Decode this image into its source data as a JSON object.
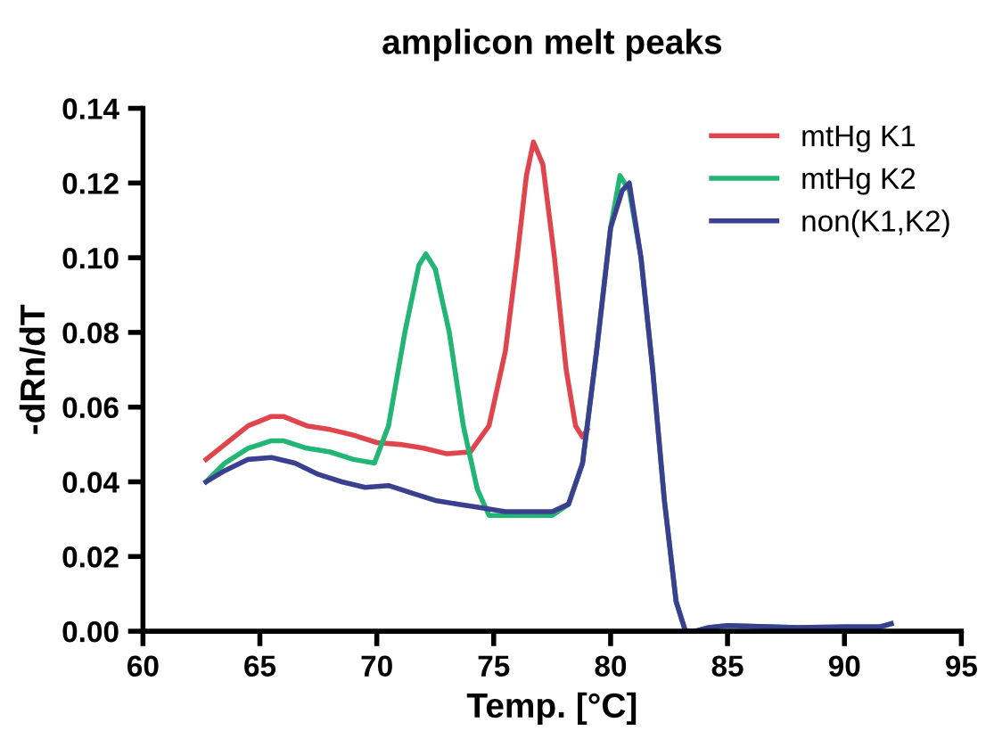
{
  "chart_data": {
    "type": "line",
    "title": "amplicon melt peaks",
    "xlabel": "Temp. [°C]",
    "ylabel": "-dRn/dT",
    "xlim": [
      60,
      95
    ],
    "xticks": [
      60,
      65,
      70,
      75,
      80,
      85,
      90,
      95
    ],
    "ylim": [
      0,
      0.14
    ],
    "yticks": [
      {
        "value": 0,
        "label": "0.00"
      },
      0.02,
      0.04,
      0.06,
      0.08,
      {
        "value": 0.1,
        "label": "0.10"
      },
      0.12,
      0.14
    ],
    "grid": false,
    "legend": "top right",
    "marker": "none",
    "line_style": "solid",
    "series": [
      {
        "name": "mtHg K1",
        "color": "#e0454d",
        "x": [
          62.7,
          63.5,
          64.5,
          65.5,
          66,
          67,
          68,
          69,
          70,
          71,
          72,
          73,
          74,
          74.8,
          75.5,
          76,
          76.4,
          76.7,
          77.1,
          77.6,
          78.1,
          78.5,
          78.8,
          79
        ],
        "values": [
          0.046,
          0.05,
          0.055,
          0.0575,
          0.0575,
          0.055,
          0.054,
          0.0525,
          0.0505,
          0.05,
          0.049,
          0.0475,
          0.048,
          0.055,
          0.075,
          0.1,
          0.122,
          0.131,
          0.125,
          0.1,
          0.07,
          0.055,
          0.052,
          0.054
        ]
      },
      {
        "name": "mtHg K2",
        "color": "#22b573",
        "x": [
          62.7,
          63.5,
          64.5,
          65.5,
          66,
          67,
          68,
          69,
          69.9,
          70.5,
          71.2,
          71.8,
          72.1,
          72.5,
          73.1,
          73.7,
          74.3,
          74.8,
          75.5,
          76.5,
          77.5,
          78.2,
          78.8,
          79.4,
          80,
          80.4,
          80.8,
          81.3,
          81.8,
          82.3,
          82.8,
          83.2,
          83.6,
          84.2,
          85,
          88,
          90,
          91.5,
          92
        ],
        "values": [
          0.04,
          0.045,
          0.049,
          0.051,
          0.051,
          0.049,
          0.048,
          0.046,
          0.045,
          0.055,
          0.08,
          0.098,
          0.101,
          0.097,
          0.08,
          0.055,
          0.038,
          0.031,
          0.031,
          0.031,
          0.031,
          0.034,
          0.045,
          0.075,
          0.108,
          0.122,
          0.118,
          0.1,
          0.07,
          0.035,
          0.008,
          0.0,
          0.0,
          0.001,
          0.0015,
          0.001,
          0.001,
          0.001,
          0.002
        ]
      },
      {
        "name": "non(K1,K2)",
        "color": "#3a3f8f",
        "x": [
          62.7,
          63.5,
          64.5,
          65.5,
          66.5,
          67.5,
          68.5,
          69.5,
          70.5,
          71.5,
          72.5,
          73.5,
          74.5,
          75.5,
          76.5,
          77.5,
          78.2,
          78.8,
          79.4,
          80,
          80.5,
          80.8,
          81.3,
          81.8,
          82.3,
          82.8,
          83.2,
          83.6,
          84.2,
          85,
          88,
          90,
          91.5,
          92
        ],
        "values": [
          0.04,
          0.043,
          0.046,
          0.0465,
          0.045,
          0.042,
          0.04,
          0.0385,
          0.039,
          0.037,
          0.035,
          0.034,
          0.033,
          0.032,
          0.032,
          0.032,
          0.034,
          0.045,
          0.075,
          0.108,
          0.118,
          0.12,
          0.1,
          0.07,
          0.035,
          0.008,
          0.0,
          0.0,
          0.001,
          0.0015,
          0.001,
          0.0012,
          0.0012,
          0.002
        ]
      }
    ]
  }
}
